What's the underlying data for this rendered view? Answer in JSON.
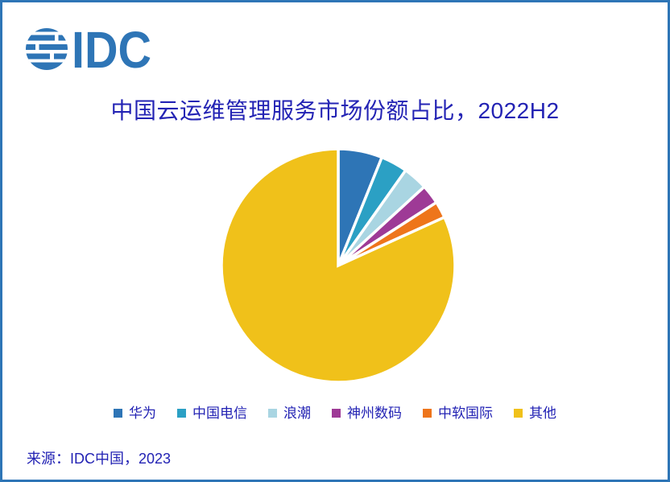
{
  "page": {
    "background": "#FFFFFF",
    "border_color": "#2E75B6"
  },
  "logo": {
    "text": "IDC",
    "color": "#2E75B6",
    "icon": "striped-globe-icon"
  },
  "title": {
    "text": "中国云运维管理服务市场份额占比，2022H2",
    "color": "#2323B4"
  },
  "chart_data": {
    "type": "pie",
    "title": "中国云运维管理服务市场份额占比，2022H2",
    "unit": "percent_share",
    "start_angle_deg": 0,
    "direction": "clockwise",
    "legend_position": "bottom",
    "labels": [
      "华为",
      "中国电信",
      "浪潮",
      "神州数码",
      "中软国际",
      "其他"
    ],
    "values": [
      6.1,
      3.7,
      3.4,
      2.7,
      2.3,
      81.8
    ],
    "colors": [
      "#2E75B6",
      "#2BA0C4",
      "#A9D5E2",
      "#9E3A96",
      "#EE751B",
      "#F0C11A"
    ],
    "slice_border_color": "#FFFFFF",
    "data_labels_shown": false
  },
  "legend": {
    "text_color": "#2323B4"
  },
  "source": {
    "text": "来源：IDC中国，2023"
  }
}
